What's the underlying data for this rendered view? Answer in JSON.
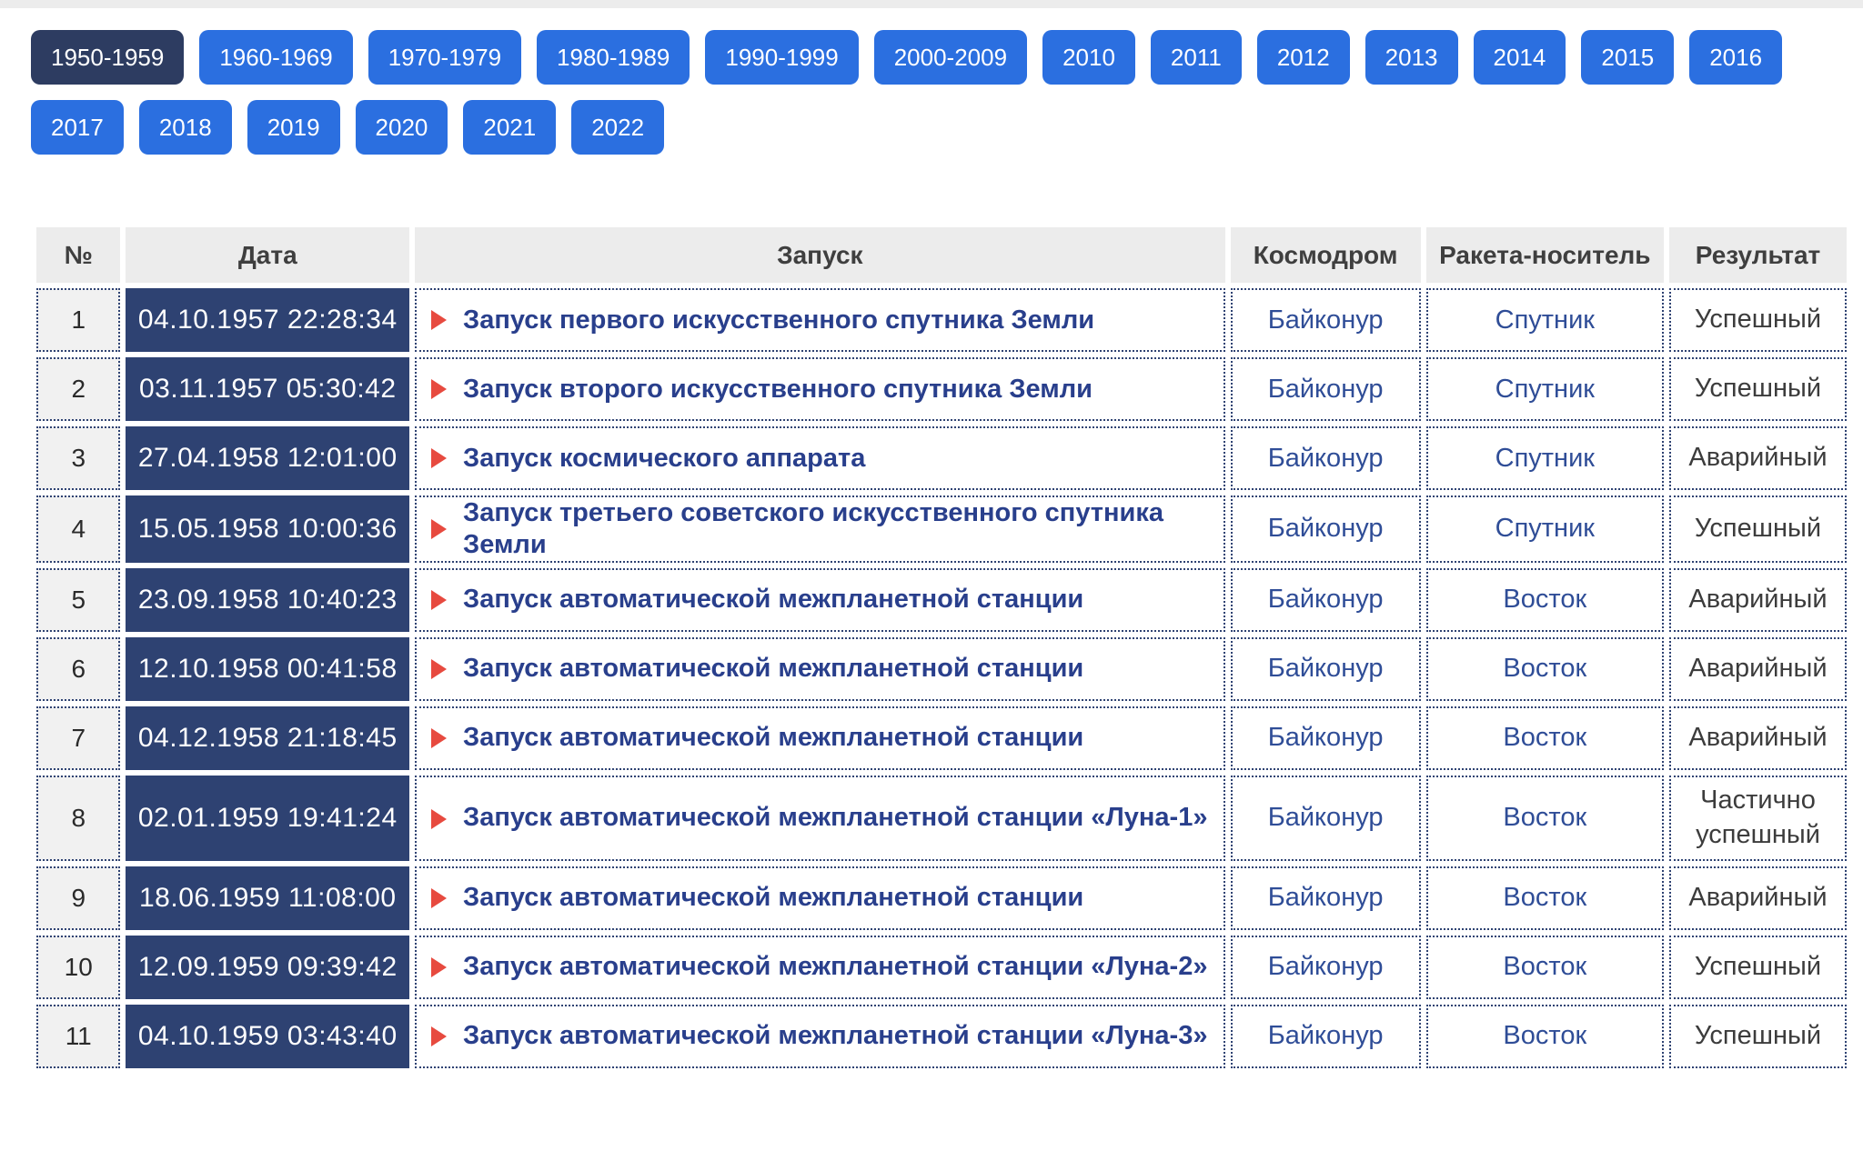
{
  "filters": {
    "selected": "1950-1959",
    "row1": [
      "1950-1959",
      "1960-1969",
      "1970-1979",
      "1980-1989",
      "1990-1999",
      "2000-2009",
      "2010",
      "2011",
      "2012",
      "2013",
      "2014",
      "2015",
      "2016"
    ],
    "row2": [
      "2017",
      "2018",
      "2019",
      "2020",
      "2021",
      "2022"
    ]
  },
  "table": {
    "headers": [
      "№",
      "Дата",
      "Запуск",
      "Космодром",
      "Ракета-носитель",
      "Результат"
    ],
    "rows": [
      {
        "num": "1",
        "date": "04.10.1957 22:28:34",
        "launch": "Запуск первого искусственного спутника Земли",
        "cosmodrome": "Байконур",
        "rocket": "Спутник",
        "result": "Успешный",
        "tall": false
      },
      {
        "num": "2",
        "date": "03.11.1957 05:30:42",
        "launch": "Запуск второго искусственного спутника Земли",
        "cosmodrome": "Байконур",
        "rocket": "Спутник",
        "result": "Успешный",
        "tall": false
      },
      {
        "num": "3",
        "date": "27.04.1958 12:01:00",
        "launch": "Запуск космического аппарата",
        "cosmodrome": "Байконур",
        "rocket": "Спутник",
        "result": "Аварийный",
        "tall": false
      },
      {
        "num": "4",
        "date": "15.05.1958 10:00:36",
        "launch": "Запуск третьего советского искусственного спутника Земли",
        "cosmodrome": "Байконур",
        "rocket": "Спутник",
        "result": "Успешный",
        "tall": false
      },
      {
        "num": "5",
        "date": "23.09.1958 10:40:23",
        "launch": "Запуск автоматической межпланетной станции",
        "cosmodrome": "Байконур",
        "rocket": "Восток",
        "result": "Аварийный",
        "tall": false
      },
      {
        "num": "6",
        "date": "12.10.1958 00:41:58",
        "launch": "Запуск автоматической межпланетной станции",
        "cosmodrome": "Байконур",
        "rocket": "Восток",
        "result": "Аварийный",
        "tall": false
      },
      {
        "num": "7",
        "date": "04.12.1958 21:18:45",
        "launch": "Запуск автоматической межпланетной станции",
        "cosmodrome": "Байконур",
        "rocket": "Восток",
        "result": "Аварийный",
        "tall": false
      },
      {
        "num": "8",
        "date": "02.01.1959 19:41:24",
        "launch": "Запуск автоматической межпланетной станции «Луна-1»",
        "cosmodrome": "Байконур",
        "rocket": "Восток",
        "result": "Частично успешный",
        "tall": true
      },
      {
        "num": "9",
        "date": "18.06.1959 11:08:00",
        "launch": "Запуск автоматической межпланетной станции",
        "cosmodrome": "Байконур",
        "rocket": "Восток",
        "result": "Аварийный",
        "tall": false
      },
      {
        "num": "10",
        "date": "12.09.1959 09:39:42",
        "launch": "Запуск автоматической межпланетной станции «Луна-2»",
        "cosmodrome": "Байконур",
        "rocket": "Восток",
        "result": "Успешный",
        "tall": false
      },
      {
        "num": "11",
        "date": "04.10.1959 03:43:40",
        "launch": "Запуск автоматической межпланетной станции «Луна-3»",
        "cosmodrome": "Байконур",
        "rocket": "Восток",
        "result": "Успешный",
        "tall": false
      }
    ]
  },
  "colors": {
    "button_blue": "#2b6fe0",
    "button_selected": "#2d3c61",
    "date_cell_navy": "#2e4272",
    "launch_link": "#293f8c",
    "cell_text_blue": "#2f4d97",
    "bullet_red": "#e74a3f",
    "header_bg": "#ececec"
  }
}
